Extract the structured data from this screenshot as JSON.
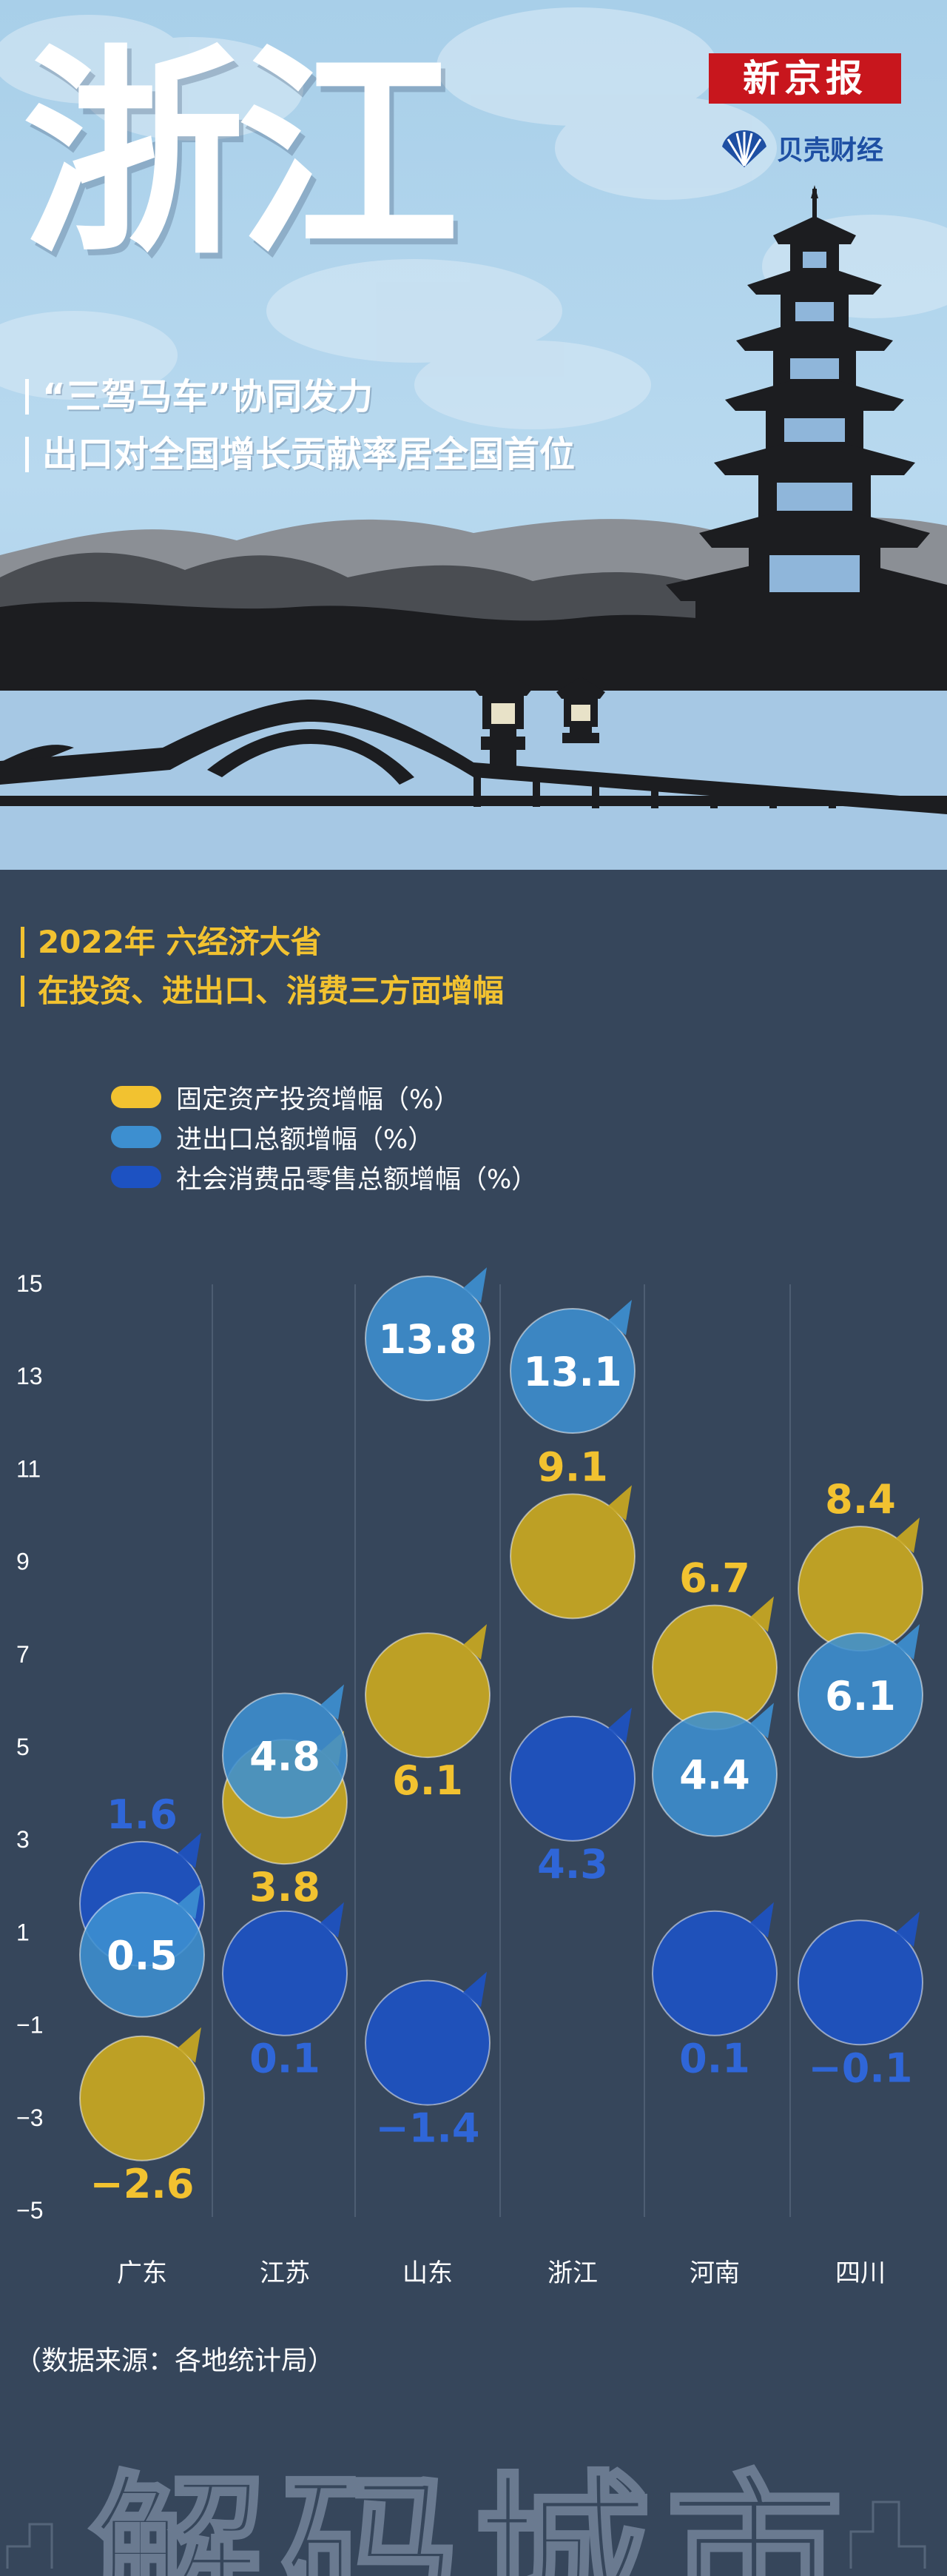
{
  "header": {
    "title": "浙江",
    "subtitle_1": "“三驾马车”协同发力",
    "subtitle_2": "出口对全国增长贡献率居全国首位",
    "brand": "新京报",
    "sub_brand": "贝壳财经"
  },
  "section": {
    "heading_1": "2022年 六经济大省",
    "heading_2": "在投资、进出口、消费三方面增幅"
  },
  "colors": {
    "investment": "#c9a821",
    "trade": "#3d8fd0",
    "consumption": "#1d52c2",
    "investment_label": "#f2c230",
    "consumption_label": "#2f66d8"
  },
  "chart_data": {
    "type": "scatter",
    "categories": [
      "广东",
      "江苏",
      "山东",
      "浙江",
      "河南",
      "四川"
    ],
    "series": [
      {
        "name": "固定资产投资增幅（%）",
        "values": [
          -2.6,
          3.8,
          6.1,
          9.1,
          6.7,
          8.4
        ]
      },
      {
        "name": "进出口总额增幅（%）",
        "values": [
          0.5,
          4.8,
          13.8,
          13.1,
          4.4,
          6.1
        ]
      },
      {
        "name": "社会消费品零售总额增幅（%）",
        "values": [
          1.6,
          0.1,
          -1.4,
          4.3,
          0.1,
          -0.1
        ]
      }
    ],
    "ylim": [
      -5,
      15
    ],
    "yticks": [
      "15",
      "13",
      "11",
      "9",
      "7",
      "5",
      "3",
      "1",
      "−1",
      "−3",
      "−5"
    ],
    "value_labels": [
      [
        "−2.6",
        "3.8",
        "6.1",
        "9.1",
        "6.7",
        "8.4"
      ],
      [
        "0.5",
        "4.8",
        "13.8",
        "13.1",
        "4.4",
        "6.1"
      ],
      [
        "1.6",
        "0.1",
        "−1.4",
        "4.3",
        "0.1",
        "−0.1"
      ]
    ],
    "grid": "vertical separators"
  },
  "source_note": "（数据来源：各地统计局）",
  "footer": {
    "watermark": "解码城市"
  }
}
